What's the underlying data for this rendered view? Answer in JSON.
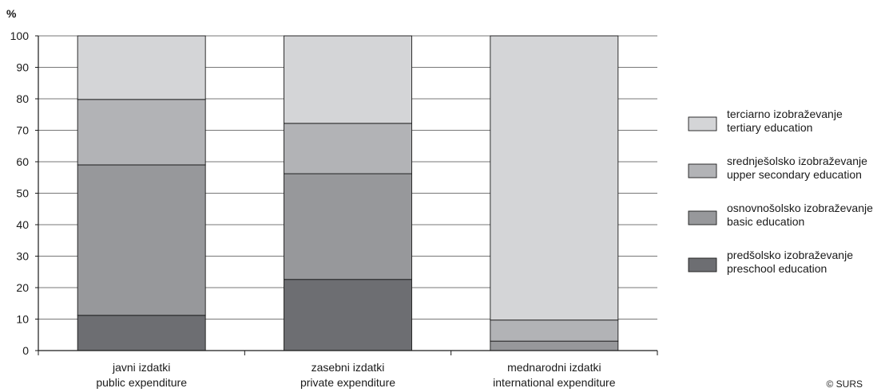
{
  "chart_data": {
    "type": "bar",
    "stacked": true,
    "y_unit": "%",
    "ylim": [
      0,
      100
    ],
    "yticks": [
      0,
      10,
      20,
      30,
      40,
      50,
      60,
      70,
      80,
      90,
      100
    ],
    "grid": true,
    "legend_position": "right",
    "categories": [
      [
        "javni izdatki",
        "public expenditure"
      ],
      [
        "zasebni izdatki",
        "private expenditure"
      ],
      [
        "mednarodni izdatki",
        "international expenditure"
      ]
    ],
    "series": [
      {
        "name": [
          "predšolsko izobraževanje",
          "preschool education"
        ],
        "color": "#6d6e72",
        "values": [
          11.2,
          22.6,
          0.0
        ]
      },
      {
        "name": [
          "osnovnošolsko izobraževanje",
          "basic education"
        ],
        "color": "#97989b",
        "values": [
          47.8,
          33.6,
          3.0
        ]
      },
      {
        "name": [
          "srednješolsko izobraževanje",
          "upper secondary education"
        ],
        "color": "#b2b3b6",
        "values": [
          20.8,
          16.0,
          6.7
        ]
      },
      {
        "name": [
          "terciarno izobraževanje",
          "tertiary education"
        ],
        "color": "#d4d5d7",
        "values": [
          20.2,
          27.8,
          90.3
        ]
      }
    ],
    "credit": "© SURS"
  }
}
